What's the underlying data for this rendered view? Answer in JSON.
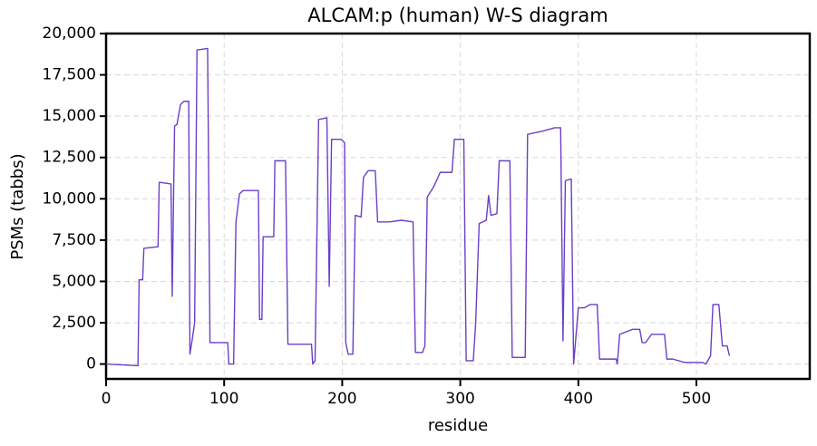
{
  "chart_data": {
    "type": "line",
    "title": "ALCAM:p (human) W-S diagram",
    "x_label": "residue",
    "y_label": "PSMs (tabbs)",
    "color": "#6a3fc8",
    "grid": true,
    "x": [
      0,
      27,
      28,
      31,
      32,
      44,
      45,
      55,
      56,
      58,
      60,
      63,
      66,
      70,
      71,
      73,
      75,
      77,
      86,
      88,
      90,
      103,
      104,
      108,
      110,
      113,
      116,
      129,
      130,
      132,
      133,
      142,
      143,
      152,
      154,
      174,
      175,
      177,
      180,
      187,
      189,
      191,
      199,
      202,
      203,
      205,
      209,
      211,
      216,
      218,
      222,
      228,
      230,
      240,
      250,
      260,
      262,
      268,
      270,
      272,
      278,
      283,
      293,
      295,
      303,
      305,
      311,
      313,
      316,
      322,
      324,
      326,
      331,
      333,
      342,
      344,
      355,
      357,
      370,
      380,
      385,
      387,
      389,
      394,
      396,
      400,
      405,
      410,
      416,
      418,
      432,
      433,
      435,
      446,
      452,
      454,
      457,
      462,
      473,
      475,
      480,
      490,
      505,
      508,
      512,
      514,
      519,
      522,
      526,
      528
    ],
    "values": [
      0,
      -100,
      5100,
      5100,
      7000,
      7100,
      11000,
      10900,
      4100,
      14400,
      14500,
      15700,
      15900,
      15900,
      600,
      1500,
      2500,
      19000,
      19100,
      1300,
      1300,
      1300,
      0,
      0,
      8600,
      10300,
      10500,
      10500,
      2700,
      2700,
      7700,
      7700,
      12300,
      12300,
      1200,
      1200,
      0,
      200,
      14800,
      14900,
      4700,
      13600,
      13600,
      13400,
      1300,
      600,
      600,
      9000,
      8900,
      11300,
      11700,
      11700,
      8600,
      8600,
      8700,
      8600,
      700,
      700,
      1100,
      10100,
      10800,
      11600,
      11600,
      13600,
      13600,
      200,
      200,
      2400,
      8500,
      8700,
      10200,
      9000,
      9100,
      12300,
      12300,
      400,
      400,
      13900,
      14100,
      14300,
      14300,
      1400,
      11100,
      11200,
      0,
      3400,
      3400,
      3600,
      3600,
      300,
      300,
      0,
      1800,
      2100,
      2100,
      1300,
      1300,
      1800,
      1800,
      300,
      300,
      100,
      100,
      0,
      500,
      3600,
      3600,
      1100,
      1100,
      500
    ],
    "xlim": [
      0,
      596
    ],
    "ylim": [
      -900,
      20000
    ],
    "xticks": [
      0,
      100,
      200,
      300,
      400,
      500
    ],
    "yticks": [
      0,
      {
        "value": 2500,
        "label": "2,500"
      },
      {
        "value": 5000,
        "label": "5,000"
      },
      {
        "value": 7500,
        "label": "7,500"
      },
      {
        "value": 10000,
        "label": "10,000"
      },
      {
        "value": 12500,
        "label": "12,500"
      },
      {
        "value": 15000,
        "label": "15,000"
      },
      {
        "value": 17500,
        "label": "17,500"
      },
      {
        "value": 20000,
        "label": "20,000"
      }
    ]
  }
}
